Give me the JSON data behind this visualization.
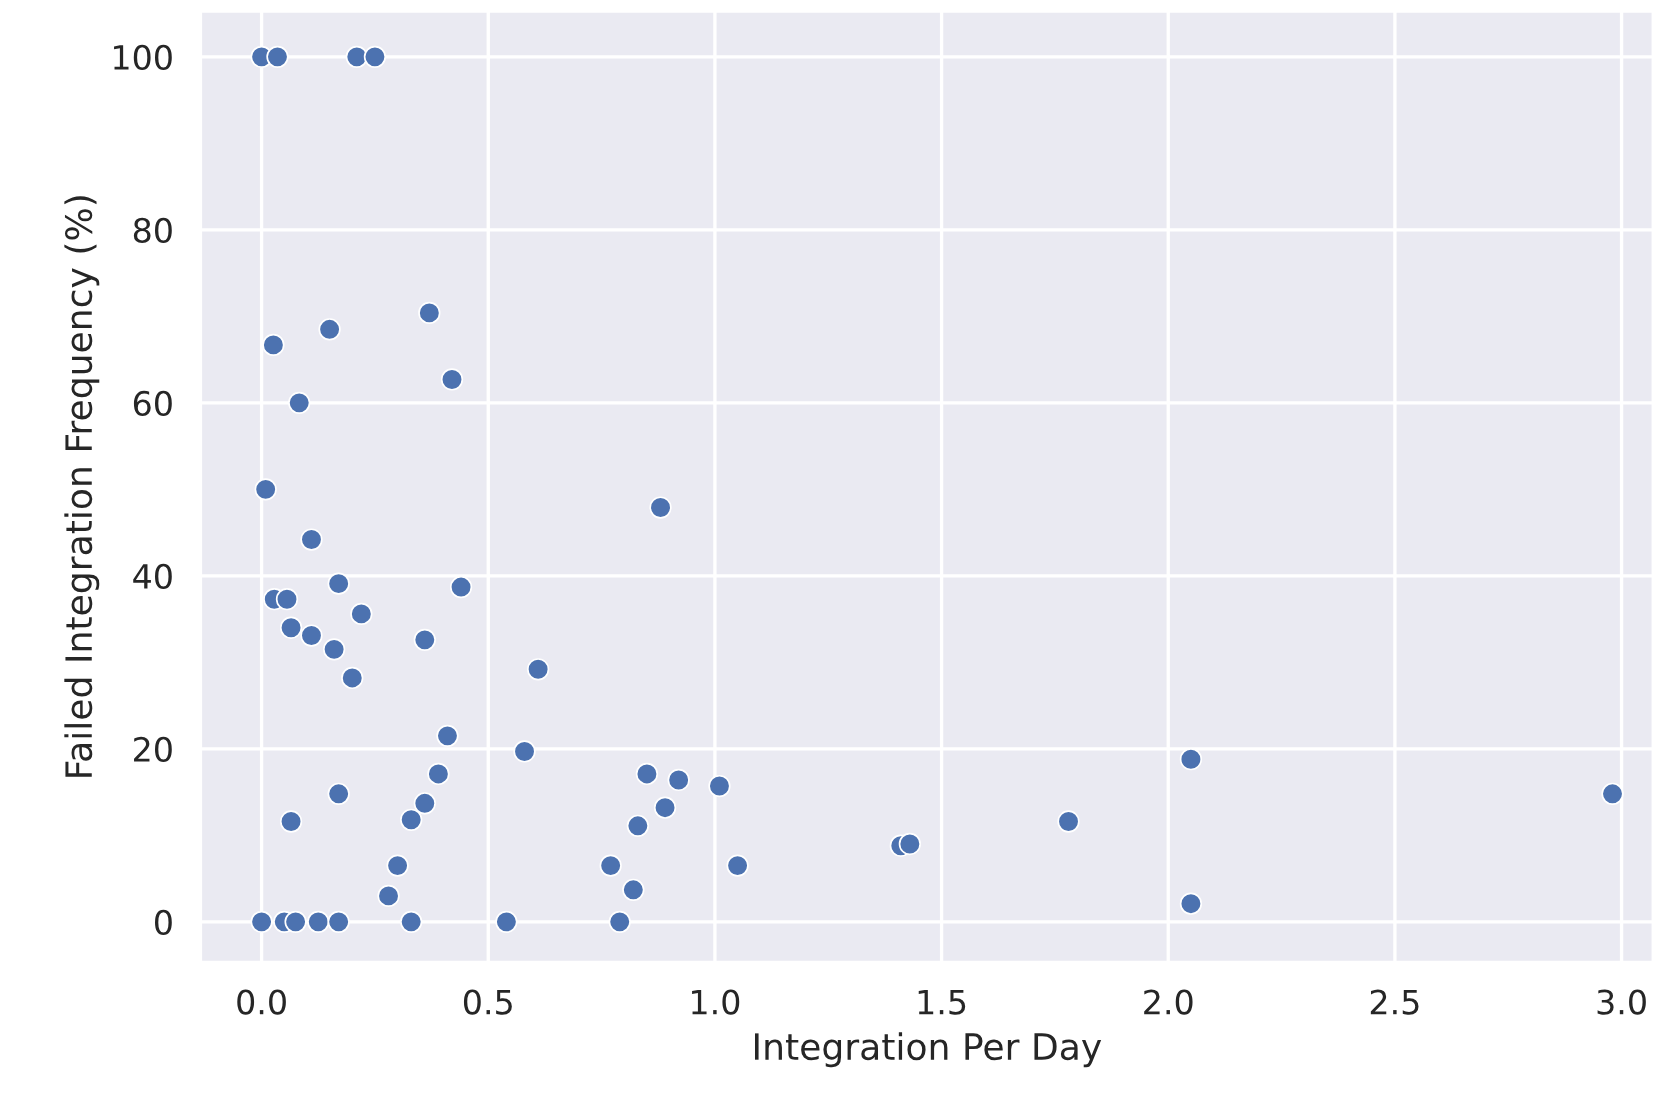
{
  "chart_data": {
    "type": "scatter",
    "xlabel": "Integration Per Day",
    "ylabel": "Failed Integration Frequency (%)",
    "xlim": [
      -0.135,
      3.07
    ],
    "ylim": [
      -4.7,
      105.3
    ],
    "xticks": [
      {
        "value": 0,
        "label": "0.0"
      },
      {
        "value": 0.5,
        "label": "0.5"
      },
      {
        "value": 1,
        "label": "1.0"
      },
      {
        "value": 1.5,
        "label": "1.5"
      },
      {
        "value": 2,
        "label": "2.0"
      },
      {
        "value": 2.5,
        "label": "2.5"
      },
      {
        "value": 3,
        "label": "3.0"
      }
    ],
    "yticks": [
      0,
      20,
      40,
      60,
      80,
      100
    ],
    "grid": true,
    "marker": "circle",
    "series": [
      {
        "color": "#4c72b0",
        "x": [
          0.0,
          0.035,
          0.21,
          0.25,
          0.37,
          0.15,
          0.026,
          0.42,
          0.083,
          0.009,
          0.88,
          0.11,
          0.17,
          0.44,
          0.028,
          0.056,
          0.22,
          0.065,
          0.11,
          0.36,
          0.16,
          0.61,
          0.2,
          0.41,
          0.58,
          0.39,
          0.85,
          0.92,
          1.01,
          0.17,
          0.36,
          0.89,
          0.33,
          0.065,
          0.83,
          0.77,
          1.05,
          0.3,
          0.28,
          0.82,
          0.0,
          0.05,
          0.075,
          0.125,
          0.17,
          0.33,
          0.54,
          0.79,
          1.41,
          1.43,
          1.78,
          2.05,
          2.05,
          2.98
        ],
        "values": [
          100,
          100,
          100,
          100,
          70.4,
          68.5,
          66.7,
          62.7,
          60,
          50,
          47.9,
          44.2,
          39.1,
          38.7,
          37.3,
          37.3,
          35.6,
          34,
          33.1,
          32.6,
          31.5,
          29.2,
          28.2,
          21.5,
          19.7,
          17.1,
          17.1,
          16.4,
          15.7,
          14.8,
          13.7,
          13.2,
          11.8,
          11.6,
          11.1,
          6.5,
          6.5,
          6.5,
          3.0,
          3.7,
          0,
          0,
          0,
          0,
          0,
          0,
          0,
          0,
          8.8,
          9.0,
          11.6,
          18.8,
          2.1,
          14.8
        ]
      }
    ]
  }
}
